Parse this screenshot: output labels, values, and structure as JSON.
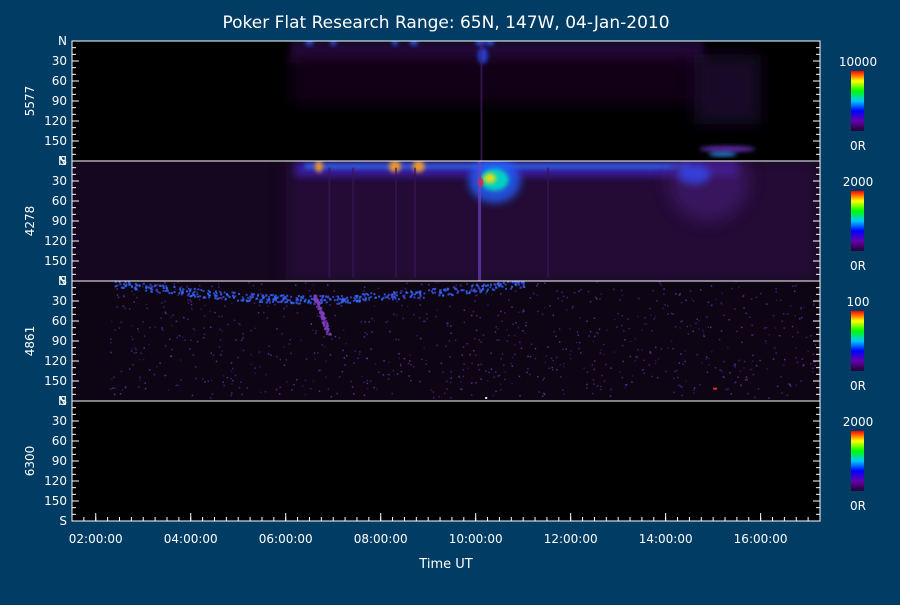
{
  "chart_data": {
    "type": "heatmap",
    "title": "Poker Flat Research Range: 65N, 147W, 04-Jan-2010",
    "xlabel": "Time UT",
    "x_ticks": [
      "02:00:00",
      "04:00:00",
      "06:00:00",
      "08:00:00",
      "10:00:00",
      "12:00:00",
      "14:00:00",
      "16:00:00"
    ],
    "xlim_hours": [
      1.5,
      17.25
    ],
    "y_ticks": [
      "N",
      "30",
      "60",
      "90",
      "120",
      "150",
      "S"
    ],
    "ylim_deg": [
      0,
      180
    ],
    "panels": [
      {
        "name": "5577",
        "colorbar_max": "10000",
        "colorbar_min": "0R"
      },
      {
        "name": "4278",
        "colorbar_max": "2000",
        "colorbar_min": "0R"
      },
      {
        "name": "4861",
        "colorbar_max": "100",
        "colorbar_min": "0R"
      },
      {
        "name": "6300",
        "colorbar_max": "2000",
        "colorbar_min": "0R"
      }
    ],
    "colorbar_colors": [
      "#ff0000",
      "#ffff00",
      "#00ff00",
      "#00c8ff",
      "#0000ff",
      "#6600aa",
      "#220033"
    ]
  }
}
